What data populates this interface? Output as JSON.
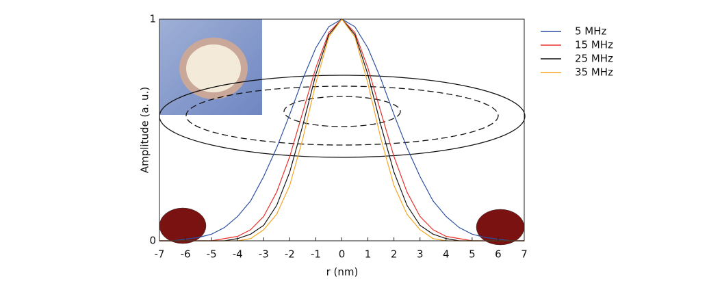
{
  "chart_data": {
    "type": "line",
    "xlabel": "r (nm)",
    "ylabel": "Amplitude (a. u.)",
    "x": [
      -7,
      -6.5,
      -6,
      -5.5,
      -5,
      -4.5,
      -4,
      -3.5,
      -3,
      -2.5,
      -2,
      -1.5,
      -1,
      -0.5,
      0,
      0.5,
      1,
      1.5,
      2,
      2.5,
      3,
      3.5,
      4,
      4.5,
      5,
      5.5,
      6,
      6.5,
      7
    ],
    "series": [
      {
        "name": "5 MHz",
        "color": "#2b4fa0",
        "values": [
          0,
          0,
          0.007,
          0.015,
          0.03,
          0.06,
          0.11,
          0.18,
          0.29,
          0.42,
          0.57,
          0.73,
          0.87,
          0.966,
          1,
          0.966,
          0.87,
          0.73,
          0.57,
          0.42,
          0.29,
          0.18,
          0.11,
          0.06,
          0.03,
          0.015,
          0.007,
          0,
          0
        ]
      },
      {
        "name": "15 MHz",
        "color": "#e8302a",
        "values": [
          0,
          0,
          0,
          0,
          0,
          0.01,
          0.02,
          0.05,
          0.11,
          0.22,
          0.38,
          0.58,
          0.78,
          0.94,
          1,
          0.94,
          0.78,
          0.58,
          0.38,
          0.22,
          0.11,
          0.05,
          0.02,
          0.01,
          0,
          0,
          0,
          0,
          0
        ]
      },
      {
        "name": "25 MHz",
        "color": "#111111",
        "values": [
          0,
          0,
          0,
          0,
          0,
          0,
          0.01,
          0.03,
          0.07,
          0.16,
          0.31,
          0.52,
          0.75,
          0.93,
          1,
          0.93,
          0.75,
          0.52,
          0.31,
          0.16,
          0.07,
          0.03,
          0.01,
          0,
          0,
          0,
          0,
          0,
          0
        ]
      },
      {
        "name": "35 MHz",
        "color": "#f5a623",
        "values": [
          0,
          0,
          0,
          0,
          0,
          0,
          0,
          0.01,
          0.05,
          0.12,
          0.25,
          0.46,
          0.71,
          0.92,
          1,
          0.92,
          0.71,
          0.46,
          0.25,
          0.12,
          0.05,
          0.01,
          0,
          0,
          0,
          0,
          0,
          0,
          0
        ]
      }
    ],
    "xlim": [
      -7,
      7
    ],
    "xticks": [
      -7,
      -6,
      -5,
      -4,
      -3,
      -2,
      -1,
      0,
      1,
      2,
      3,
      4,
      5,
      6,
      7
    ],
    "ylim": [
      0,
      1
    ],
    "yticks": [
      0,
      1
    ],
    "legend": "right"
  }
}
